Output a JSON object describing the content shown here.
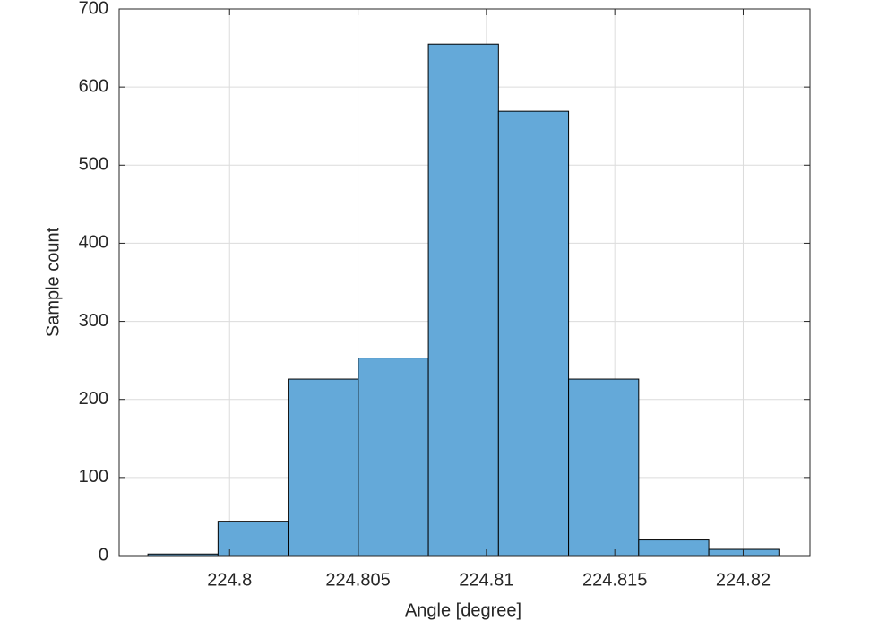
{
  "chart_data": {
    "type": "histogram",
    "x_label": "Angle [degree]",
    "y_label": "Sample count",
    "bins": [
      224.79682,
      224.79955,
      224.80228,
      224.80501,
      224.80774,
      224.81047,
      224.8132,
      224.81593,
      224.81866,
      224.82139
    ],
    "counts": [
      2,
      44,
      226,
      253,
      655,
      569,
      226,
      20,
      8
    ],
    "color": "#64a9d9",
    "xlim": [
      224.7957,
      224.8226
    ],
    "xticks": [
      224.8,
      224.805,
      224.81,
      224.815,
      224.82
    ],
    "ylim": [
      0,
      700
    ],
    "yticks": [
      0,
      100,
      200,
      300,
      400,
      500,
      600,
      700
    ],
    "grid": true
  }
}
